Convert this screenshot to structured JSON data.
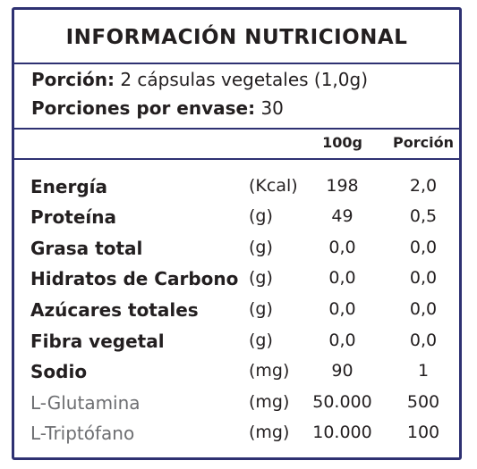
{
  "title": "INFORMACIÓN NUTRICIONAL",
  "serving": {
    "portion_label": "Porción:",
    "portion_value": "2 cápsulas vegetales (1,0g)",
    "per_container_label": "Porciones por envase:",
    "per_container_value": "30"
  },
  "columns": {
    "per_100g": "100g",
    "per_portion": "Porción"
  },
  "rows": [
    {
      "name": "Energía",
      "unit": "(Kcal)",
      "per_100g": "198",
      "per_portion": "2,0"
    },
    {
      "name": "Proteína",
      "unit": "(g)",
      "per_100g": "49",
      "per_portion": "0,5"
    },
    {
      "name": "Grasa total",
      "unit": "(g)",
      "per_100g": "0,0",
      "per_portion": "0,0"
    },
    {
      "name": "Hidratos de Carbono",
      "unit": "(g)",
      "per_100g": "0,0",
      "per_portion": "0,0"
    },
    {
      "name": "Azúcares totales",
      "unit": "(g)",
      "per_100g": "0,0",
      "per_portion": "0,0"
    },
    {
      "name": "Fibra vegetal",
      "unit": "(g)",
      "per_100g": "0,0",
      "per_portion": "0,0"
    },
    {
      "name": "Sodio",
      "unit": "(mg)",
      "per_100g": "90",
      "per_portion": "1"
    },
    {
      "name": "L-Glutamina",
      "unit": "(mg)",
      "per_100g": "50.000",
      "per_portion": "500"
    },
    {
      "name": "L-Triptófano",
      "unit": "(mg)",
      "per_100g": "10.000",
      "per_portion": "100"
    }
  ],
  "colors": {
    "border": "#2e3172",
    "text": "#231f20",
    "muted_text": "#6d6e71"
  }
}
